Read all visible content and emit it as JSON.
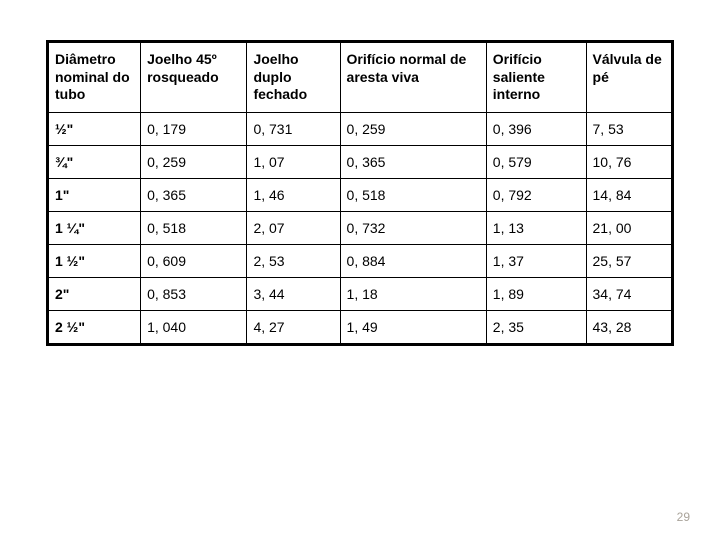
{
  "table": {
    "columns": [
      "Diâmetro nominal do tubo",
      "Joelho 45º rosqueado",
      "Joelho duplo fechado",
      "Orifício normal de aresta viva",
      "Orifício saliente interno",
      "Válvula de pé"
    ],
    "rows": [
      [
        "½\"",
        "0, 179",
        "0, 731",
        "0, 259",
        "0, 396",
        "7, 53"
      ],
      [
        "¾\"",
        "0, 259",
        "1, 07",
        "0, 365",
        "0, 579",
        "10, 76"
      ],
      [
        "1\"",
        "0, 365",
        "1, 46",
        "0, 518",
        "0, 792",
        "14, 84"
      ],
      [
        "1 ¼\"",
        "0, 518",
        "2, 07",
        "0, 732",
        "1, 13",
        "21, 00"
      ],
      [
        "1 ½\"",
        "0, 609",
        "2, 53",
        "0, 884",
        "1, 37",
        "25, 57"
      ],
      [
        "2\"",
        "0, 853",
        "3, 44",
        "1, 18",
        "1, 89",
        "34, 74"
      ],
      [
        "2 ½\"",
        "1, 040",
        "4, 27",
        "1, 49",
        "2, 35",
        "43, 28"
      ]
    ],
    "border_color": "#000000",
    "background_color": "#ffffff",
    "header_font_weight": "bold",
    "font_size": 14,
    "col_widths_pct": [
      14,
      16,
      14,
      22,
      15,
      13
    ]
  },
  "page_number": "29"
}
